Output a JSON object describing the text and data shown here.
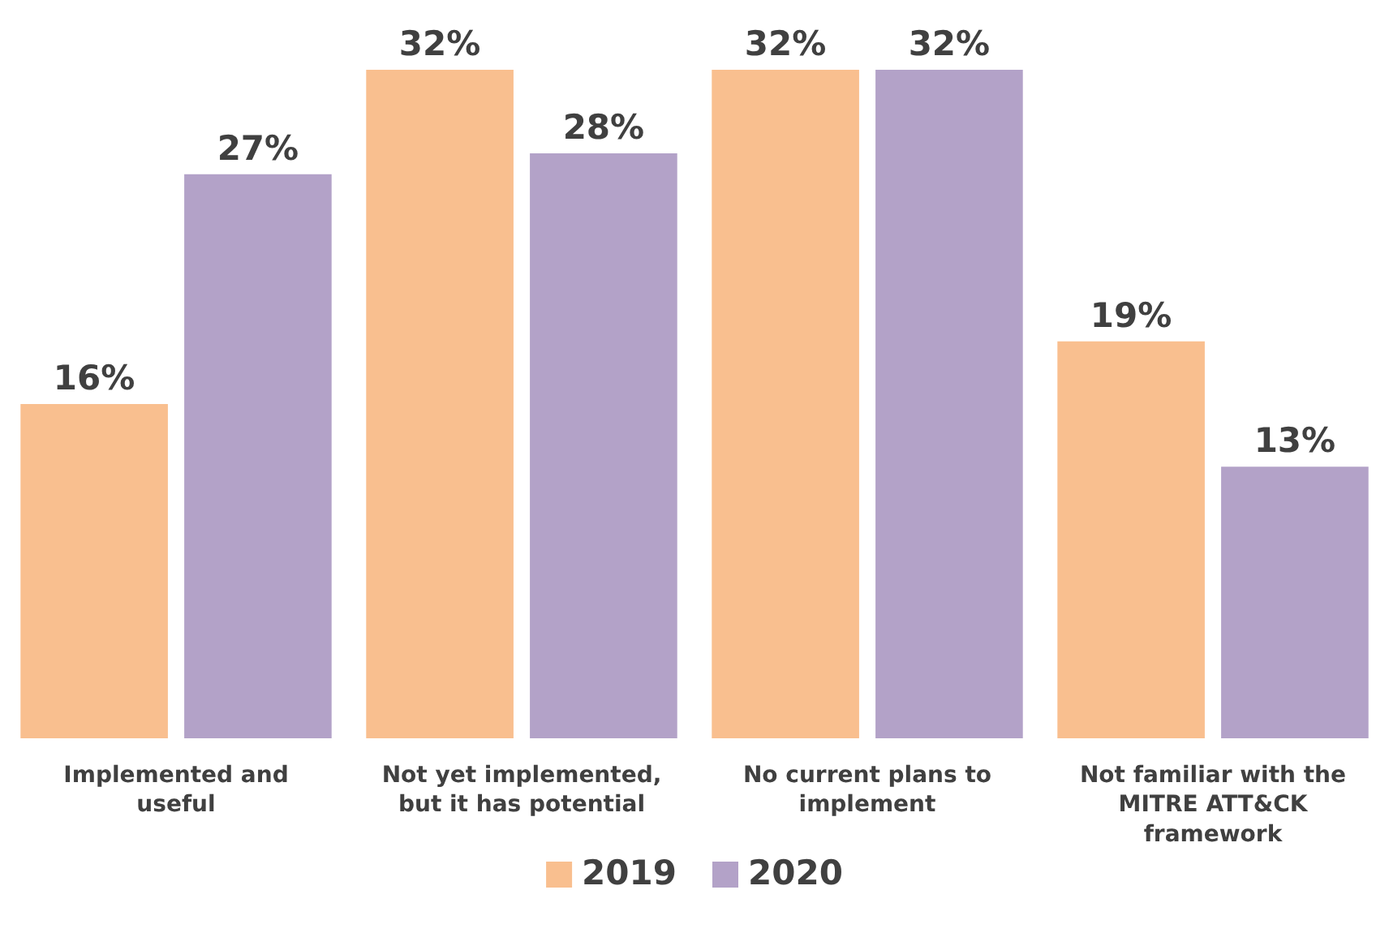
{
  "chart_data": {
    "type": "bar",
    "categories": [
      "Implemented and useful",
      "Not yet implemented, but it has potential",
      "No current plans to implement",
      "Not familiar with the MITRE ATT&CK framework"
    ],
    "series": [
      {
        "name": "2019",
        "color": "#f9bf8f",
        "values": [
          16,
          32,
          32,
          19
        ],
        "value_labels": [
          "16%",
          "32%",
          "32%",
          "19%"
        ]
      },
      {
        "name": "2020",
        "color": "#b3a2c8",
        "values": [
          27,
          28,
          32,
          13
        ],
        "value_labels": [
          "27%",
          "28%",
          "32%",
          "13%"
        ]
      }
    ],
    "legend": "bottom"
  }
}
